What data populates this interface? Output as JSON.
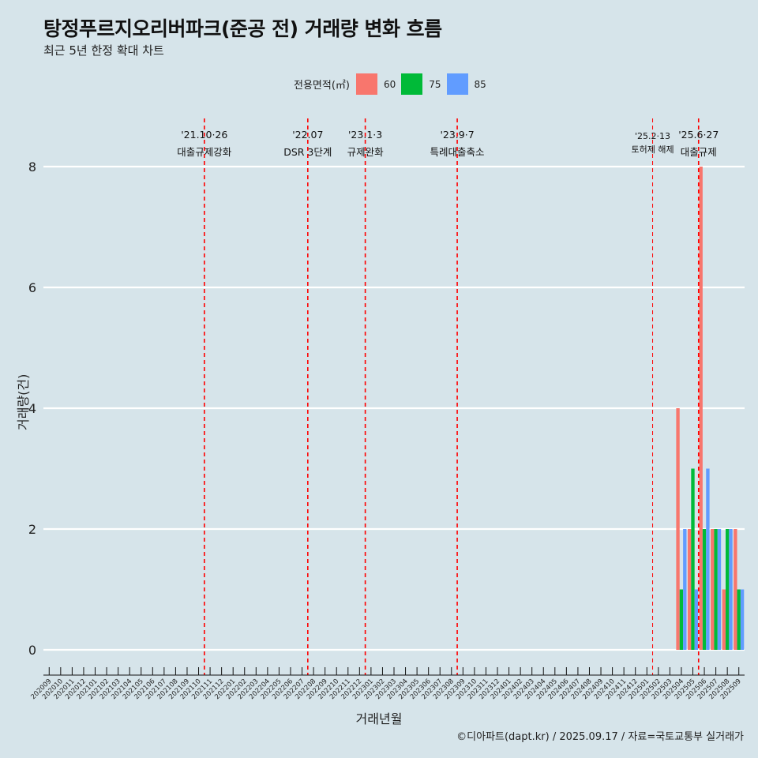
{
  "chart_data": {
    "type": "bar",
    "title": "탕정푸르지오리버파크(준공 전) 거래량 변화 흐름",
    "subtitle": "최근 5년 한정 확대 차트",
    "xlabel": "거래년월",
    "ylabel": "거래량(건)",
    "ylim": [
      0,
      8
    ],
    "yticks": [
      0,
      2,
      4,
      6,
      8
    ],
    "legend_title": "전용면적(㎡)",
    "legend_position": "top",
    "caption": "©디아파트(dapt.kr) / 2025.09.17 / 자료=국토교통부 실거래가",
    "categories": [
      "202009",
      "202010",
      "202011",
      "202012",
      "202101",
      "202102",
      "202103",
      "202104",
      "202105",
      "202106",
      "202107",
      "202108",
      "202109",
      "202110",
      "202111",
      "202112",
      "202201",
      "202202",
      "202203",
      "202204",
      "202205",
      "202206",
      "202207",
      "202208",
      "202209",
      "202210",
      "202211",
      "202212",
      "202301",
      "202302",
      "202303",
      "202304",
      "202305",
      "202306",
      "202307",
      "202308",
      "202309",
      "202310",
      "202311",
      "202312",
      "202401",
      "202402",
      "202403",
      "202404",
      "202405",
      "202406",
      "202407",
      "202408",
      "202409",
      "202410",
      "202411",
      "202412",
      "202501",
      "202502",
      "202503",
      "202504",
      "202505",
      "202506",
      "202507",
      "202508",
      "202509"
    ],
    "series": [
      {
        "name": "60",
        "color": "#f8766d",
        "values": {
          "202504": 4,
          "202505": 2,
          "202506": 8,
          "202507": 2,
          "202508": 1,
          "202509": 2
        }
      },
      {
        "name": "75",
        "color": "#00ba38",
        "values": {
          "202504": 1,
          "202505": 3,
          "202506": 2,
          "202507": 2,
          "202508": 2,
          "202509": 1
        }
      },
      {
        "name": "85",
        "color": "#619cff",
        "values": {
          "202504": 2,
          "202505": 1,
          "202506": 3,
          "202507": 2,
          "202508": 2,
          "202509": 1
        }
      }
    ],
    "events": [
      {
        "at": "202110",
        "date": "'21.10·26",
        "label": "대출규제강화",
        "size": "normal"
      },
      {
        "at": "202207",
        "date": "'22.07",
        "label": "DSR 3단계",
        "size": "normal"
      },
      {
        "at": "202212",
        "date": "'23.1·3",
        "label": "규제완화",
        "size": "normal"
      },
      {
        "at": "202308",
        "date": "'23.9·7",
        "label": "특례대출축소",
        "size": "normal"
      },
      {
        "at": "202501",
        "date": "'25.2·13",
        "label": "토허제 해제",
        "size": "small"
      },
      {
        "at": "202505",
        "date": "'25.6·27",
        "label": "대출규제",
        "size": "normal"
      }
    ]
  }
}
